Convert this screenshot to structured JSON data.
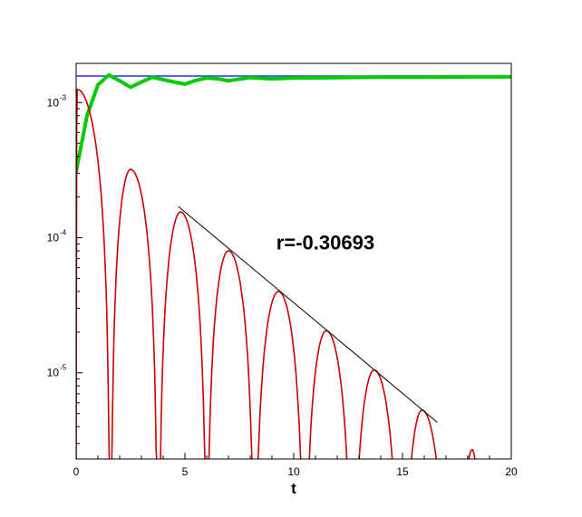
{
  "chart_data": {
    "type": "line",
    "title": "",
    "xlabel": "t",
    "ylabel": "",
    "xlim": [
      0,
      20
    ],
    "ylim": [
      2.3e-06,
      0.00195
    ],
    "yscale": "log",
    "grid": false,
    "x_ticks": [
      {
        "value": 0,
        "label": "0"
      },
      {
        "value": 5,
        "label": "5"
      },
      {
        "value": 10,
        "label": "10"
      },
      {
        "value": 15,
        "label": "15"
      },
      {
        "value": 20,
        "label": "20"
      }
    ],
    "y_ticks": [
      {
        "value": 0.001,
        "base": "10",
        "exp": "-3"
      },
      {
        "value": 0.0001,
        "base": "10",
        "exp": "-4"
      },
      {
        "value": 1e-05,
        "base": "10",
        "exp": "-5"
      }
    ],
    "series": [
      {
        "color": "#2a2aff",
        "style": "constant",
        "value": 0.00157,
        "x_range": [
          0,
          20
        ]
      },
      {
        "color": "#00cc00",
        "style": "damped-oscillation",
        "x": [
          0,
          0.5,
          1.0,
          1.5,
          2.0,
          2.5,
          3.0,
          3.5,
          4.0,
          4.5,
          5.0,
          5.5,
          6.0,
          6.5,
          7.0,
          8.0,
          9.0,
          10.0,
          12.0,
          14.0,
          16.0,
          18.0,
          20.0
        ],
        "y": [
          0.00031,
          0.0008,
          0.00135,
          0.0016,
          0.00145,
          0.0013,
          0.00142,
          0.00154,
          0.00148,
          0.00142,
          0.00137,
          0.00146,
          0.00152,
          0.0015,
          0.00145,
          0.00153,
          0.0015,
          0.00152,
          0.00153,
          0.00154,
          0.00154,
          0.00155,
          0.00155
        ]
      },
      {
        "color": "#cc0000",
        "style": "oscillating-envelope",
        "lobes": [
          {
            "start": 0.0,
            "end": 1.55,
            "peak_x": 0.05,
            "peak_y": 0.00125
          },
          {
            "start": 1.6,
            "end": 3.75,
            "peak_x": 2.5,
            "peak_y": 0.00032
          },
          {
            "start": 3.8,
            "end": 6.0,
            "peak_x": 4.8,
            "peak_y": 0.000155
          },
          {
            "start": 6.0,
            "end": 8.2,
            "peak_x": 7.0,
            "peak_y": 8e-05
          },
          {
            "start": 8.2,
            "end": 10.5,
            "peak_x": 9.3,
            "peak_y": 4e-05
          },
          {
            "start": 10.5,
            "end": 12.7,
            "peak_x": 11.5,
            "peak_y": 2.05e-05
          },
          {
            "start": 12.7,
            "end": 14.9,
            "peak_x": 13.7,
            "peak_y": 1.05e-05
          },
          {
            "start": 15.0,
            "end": 17.1,
            "peak_x": 15.9,
            "peak_y": 5.3e-06
          },
          {
            "start": 17.6,
            "end": 18.7,
            "peak_x": 18.2,
            "peak_y": 2.7e-06
          }
        ]
      }
    ],
    "fit_line": {
      "color": "#000000",
      "x": [
        4.7,
        16.6
      ],
      "y": [
        0.00017,
        4.3e-06
      ]
    },
    "annotations": [
      {
        "text": "r=-0.30693",
        "x": 9.2,
        "y": 8.2e-05
      }
    ]
  }
}
